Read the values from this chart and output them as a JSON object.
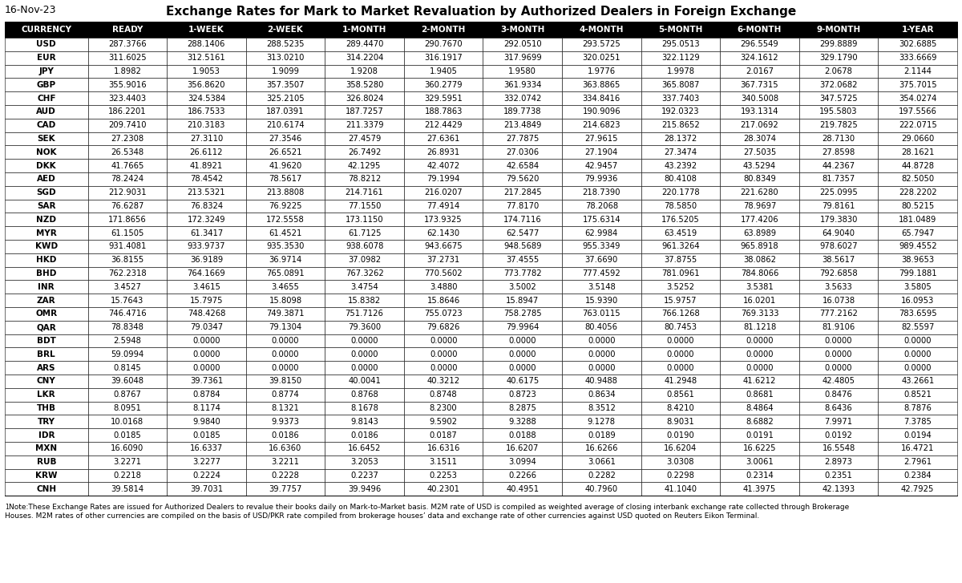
{
  "date_label": "16-Nov-23",
  "title": "Exchange Rates for Mark to Market Revaluation by Authorized Dealers in Foreign Exchange",
  "columns": [
    "CURRENCY",
    "READY",
    "1-WEEK",
    "2-WEEK",
    "1-MONTH",
    "2-MONTH",
    "3-MONTH",
    "4-MONTH",
    "5-MONTH",
    "6-MONTH",
    "9-MONTH",
    "1-YEAR"
  ],
  "rows": [
    [
      "USD",
      "287.3766",
      "288.1406",
      "288.5235",
      "289.4470",
      "290.7670",
      "292.0510",
      "293.5725",
      "295.0513",
      "296.5549",
      "299.8889",
      "302.6885"
    ],
    [
      "EUR",
      "311.6025",
      "312.5161",
      "313.0210",
      "314.2204",
      "316.1917",
      "317.9699",
      "320.0251",
      "322.1129",
      "324.1612",
      "329.1790",
      "333.6669"
    ],
    [
      "JPY",
      "1.8982",
      "1.9053",
      "1.9099",
      "1.9208",
      "1.9405",
      "1.9580",
      "1.9776",
      "1.9978",
      "2.0167",
      "2.0678",
      "2.1144"
    ],
    [
      "GBP",
      "355.9016",
      "356.8620",
      "357.3507",
      "358.5280",
      "360.2779",
      "361.9334",
      "363.8865",
      "365.8087",
      "367.7315",
      "372.0682",
      "375.7015"
    ],
    [
      "CHF",
      "323.4403",
      "324.5384",
      "325.2105",
      "326.8024",
      "329.5951",
      "332.0742",
      "334.8416",
      "337.7403",
      "340.5008",
      "347.5725",
      "354.0274"
    ],
    [
      "AUD",
      "186.2201",
      "186.7533",
      "187.0391",
      "187.7257",
      "188.7863",
      "189.7738",
      "190.9096",
      "192.0323",
      "193.1314",
      "195.5803",
      "197.5566"
    ],
    [
      "CAD",
      "209.7410",
      "210.3183",
      "210.6174",
      "211.3379",
      "212.4429",
      "213.4849",
      "214.6823",
      "215.8652",
      "217.0692",
      "219.7825",
      "222.0715"
    ],
    [
      "SEK",
      "27.2308",
      "27.3110",
      "27.3546",
      "27.4579",
      "27.6361",
      "27.7875",
      "27.9615",
      "28.1372",
      "28.3074",
      "28.7130",
      "29.0660"
    ],
    [
      "NOK",
      "26.5348",
      "26.6112",
      "26.6521",
      "26.7492",
      "26.8931",
      "27.0306",
      "27.1904",
      "27.3474",
      "27.5035",
      "27.8598",
      "28.1621"
    ],
    [
      "DKK",
      "41.7665",
      "41.8921",
      "41.9620",
      "42.1295",
      "42.4072",
      "42.6584",
      "42.9457",
      "43.2392",
      "43.5294",
      "44.2367",
      "44.8728"
    ],
    [
      "AED",
      "78.2424",
      "78.4542",
      "78.5617",
      "78.8212",
      "79.1994",
      "79.5620",
      "79.9936",
      "80.4108",
      "80.8349",
      "81.7357",
      "82.5050"
    ],
    [
      "SGD",
      "212.9031",
      "213.5321",
      "213.8808",
      "214.7161",
      "216.0207",
      "217.2845",
      "218.7390",
      "220.1778",
      "221.6280",
      "225.0995",
      "228.2202"
    ],
    [
      "SAR",
      "76.6287",
      "76.8324",
      "76.9225",
      "77.1550",
      "77.4914",
      "77.8170",
      "78.2068",
      "78.5850",
      "78.9697",
      "79.8161",
      "80.5215"
    ],
    [
      "NZD",
      "171.8656",
      "172.3249",
      "172.5558",
      "173.1150",
      "173.9325",
      "174.7116",
      "175.6314",
      "176.5205",
      "177.4206",
      "179.3830",
      "181.0489"
    ],
    [
      "MYR",
      "61.1505",
      "61.3417",
      "61.4521",
      "61.7125",
      "62.1430",
      "62.5477",
      "62.9984",
      "63.4519",
      "63.8989",
      "64.9040",
      "65.7947"
    ],
    [
      "KWD",
      "931.4081",
      "933.9737",
      "935.3530",
      "938.6078",
      "943.6675",
      "948.5689",
      "955.3349",
      "961.3264",
      "965.8918",
      "978.6027",
      "989.4552"
    ],
    [
      "HKD",
      "36.8155",
      "36.9189",
      "36.9714",
      "37.0982",
      "37.2731",
      "37.4555",
      "37.6690",
      "37.8755",
      "38.0862",
      "38.5617",
      "38.9653"
    ],
    [
      "BHD",
      "762.2318",
      "764.1669",
      "765.0891",
      "767.3262",
      "770.5602",
      "773.7782",
      "777.4592",
      "781.0961",
      "784.8066",
      "792.6858",
      "799.1881"
    ],
    [
      "INR",
      "3.4527",
      "3.4615",
      "3.4655",
      "3.4754",
      "3.4880",
      "3.5002",
      "3.5148",
      "3.5252",
      "3.5381",
      "3.5633",
      "3.5805"
    ],
    [
      "ZAR",
      "15.7643",
      "15.7975",
      "15.8098",
      "15.8382",
      "15.8646",
      "15.8947",
      "15.9390",
      "15.9757",
      "16.0201",
      "16.0738",
      "16.0953"
    ],
    [
      "OMR",
      "746.4716",
      "748.4268",
      "749.3871",
      "751.7126",
      "755.0723",
      "758.2785",
      "763.0115",
      "766.1268",
      "769.3133",
      "777.2162",
      "783.6595"
    ],
    [
      "QAR",
      "78.8348",
      "79.0347",
      "79.1304",
      "79.3600",
      "79.6826",
      "79.9964",
      "80.4056",
      "80.7453",
      "81.1218",
      "81.9106",
      "82.5597"
    ],
    [
      "BDT",
      "2.5948",
      "0.0000",
      "0.0000",
      "0.0000",
      "0.0000",
      "0.0000",
      "0.0000",
      "0.0000",
      "0.0000",
      "0.0000",
      "0.0000"
    ],
    [
      "BRL",
      "59.0994",
      "0.0000",
      "0.0000",
      "0.0000",
      "0.0000",
      "0.0000",
      "0.0000",
      "0.0000",
      "0.0000",
      "0.0000",
      "0.0000"
    ],
    [
      "ARS",
      "0.8145",
      "0.0000",
      "0.0000",
      "0.0000",
      "0.0000",
      "0.0000",
      "0.0000",
      "0.0000",
      "0.0000",
      "0.0000",
      "0.0000"
    ],
    [
      "CNY",
      "39.6048",
      "39.7361",
      "39.8150",
      "40.0041",
      "40.3212",
      "40.6175",
      "40.9488",
      "41.2948",
      "41.6212",
      "42.4805",
      "43.2661"
    ],
    [
      "LKR",
      "0.8767",
      "0.8784",
      "0.8774",
      "0.8768",
      "0.8748",
      "0.8723",
      "0.8634",
      "0.8561",
      "0.8681",
      "0.8476",
      "0.8521"
    ],
    [
      "THB",
      "8.0951",
      "8.1174",
      "8.1321",
      "8.1678",
      "8.2300",
      "8.2875",
      "8.3512",
      "8.4210",
      "8.4864",
      "8.6436",
      "8.7876"
    ],
    [
      "TRY",
      "10.0168",
      "9.9840",
      "9.9373",
      "9.8143",
      "9.5902",
      "9.3288",
      "9.1278",
      "8.9031",
      "8.6882",
      "7.9971",
      "7.3785"
    ],
    [
      "IDR",
      "0.0185",
      "0.0185",
      "0.0186",
      "0.0186",
      "0.0187",
      "0.0188",
      "0.0189",
      "0.0190",
      "0.0191",
      "0.0192",
      "0.0194"
    ],
    [
      "MXN",
      "16.6090",
      "16.6337",
      "16.6360",
      "16.6452",
      "16.6316",
      "16.6207",
      "16.6266",
      "16.6204",
      "16.6225",
      "16.5548",
      "16.4721"
    ],
    [
      "RUB",
      "3.2271",
      "3.2277",
      "3.2211",
      "3.2053",
      "3.1511",
      "3.0994",
      "3.0661",
      "3.0308",
      "3.0061",
      "2.8973",
      "2.7961"
    ],
    [
      "KRW",
      "0.2218",
      "0.2224",
      "0.2228",
      "0.2237",
      "0.2253",
      "0.2266",
      "0.2282",
      "0.2298",
      "0.2314",
      "0.2351",
      "0.2384"
    ],
    [
      "CNH",
      "39.5814",
      "39.7031",
      "39.7757",
      "39.9496",
      "40.2301",
      "40.4951",
      "40.7960",
      "41.1040",
      "41.3975",
      "42.1393",
      "42.7925"
    ]
  ],
  "footnote_super": "1",
  "footnote_line1": "Note:These Exchange Rates are issued for Authorized Dealers to revalue their books daily on Mark-to-Market basis. M2M rate of USD is compiled as weighted average of closing interbank exchange rate collected through Brokerage",
  "footnote_line2": "Houses. M2M rates of other currencies are compiled on the basis of USD/PKR rate compiled from brokerage houses’ data and exchange rate of other currencies against USD quoted on Reuters Eikon Terminal.",
  "col_widths_ratio": [
    1.05,
    1.0,
    1.0,
    1.0,
    1.0,
    1.0,
    1.0,
    1.0,
    1.0,
    1.0,
    1.0,
    1.0
  ]
}
